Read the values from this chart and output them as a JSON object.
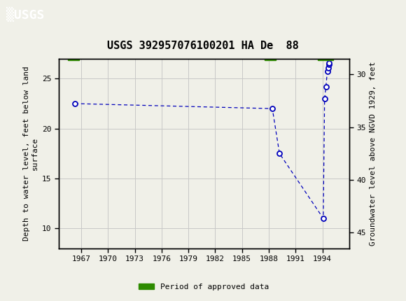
{
  "title": "USGS 392957076100201 HA De  88",
  "header_bg": "#006644",
  "ylabel_left": "Depth to water level, feet below land\nsurface",
  "ylabel_right": "Groundwater level above NGVD 1929, feet",
  "ylim_left_top": 8,
  "ylim_left_bottom": 27,
  "xlim": [
    1964.5,
    1997
  ],
  "xticks": [
    1967,
    1970,
    1973,
    1976,
    1979,
    1982,
    1985,
    1988,
    1991,
    1994
  ],
  "yticks_left": [
    10,
    15,
    20,
    25
  ],
  "yticks_right": [
    45,
    40,
    35,
    30
  ],
  "yticks_right_labels": [
    "45",
    "40",
    "35",
    "30"
  ],
  "data_x": [
    1966.3,
    1988.4,
    1989.2,
    1994.1,
    1994.25,
    1994.4,
    1994.55,
    1994.65,
    1994.72,
    1994.78
  ],
  "data_y": [
    22.5,
    22.0,
    17.5,
    11.0,
    23.0,
    24.2,
    25.7,
    26.1,
    26.4,
    26.6
  ],
  "approved_bars": [
    {
      "xstart": 1965.5,
      "xend": 1966.8
    },
    {
      "xstart": 1987.5,
      "xend": 1988.8
    },
    {
      "xstart": 1993.5,
      "xend": 1995.2
    }
  ],
  "point_color": "#0000bb",
  "line_color": "#0000bb",
  "grid_color": "#c8c8c8",
  "approved_color": "#2e8b00",
  "background_color": "#f0f0e8",
  "plot_bg": "#f0f0e8",
  "title_fontsize": 11,
  "label_fontsize": 8,
  "tick_fontsize": 8
}
